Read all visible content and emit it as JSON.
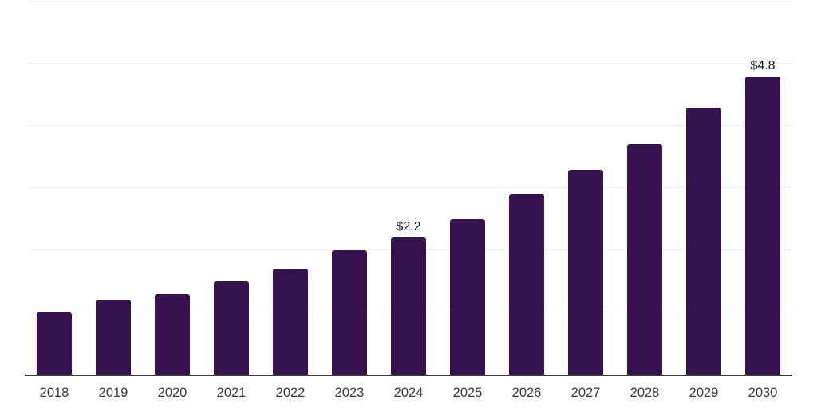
{
  "chart_data": {
    "type": "bar",
    "categories": [
      "2018",
      "2019",
      "2020",
      "2021",
      "2022",
      "2023",
      "2024",
      "2025",
      "2026",
      "2027",
      "2028",
      "2029",
      "2030"
    ],
    "values": [
      1.0,
      1.2,
      1.3,
      1.5,
      1.7,
      2.0,
      2.2,
      2.5,
      2.9,
      3.3,
      3.7,
      4.3,
      4.8
    ],
    "point_labels": {
      "2024": "$2.2",
      "2030": "$4.8"
    },
    "title": "",
    "xlabel": "",
    "ylabel": "",
    "ylim": [
      0,
      6
    ],
    "gridline_step": 1,
    "grid": true,
    "legend": false,
    "y_axis_labels_visible": false,
    "colors": {
      "bar": "#36124E",
      "gridline": "#EFEFEF",
      "axis": "#3A3A3A",
      "tick_label": "#3C3C3C",
      "value_label": "#161616",
      "background": "#FFFFFF"
    }
  }
}
